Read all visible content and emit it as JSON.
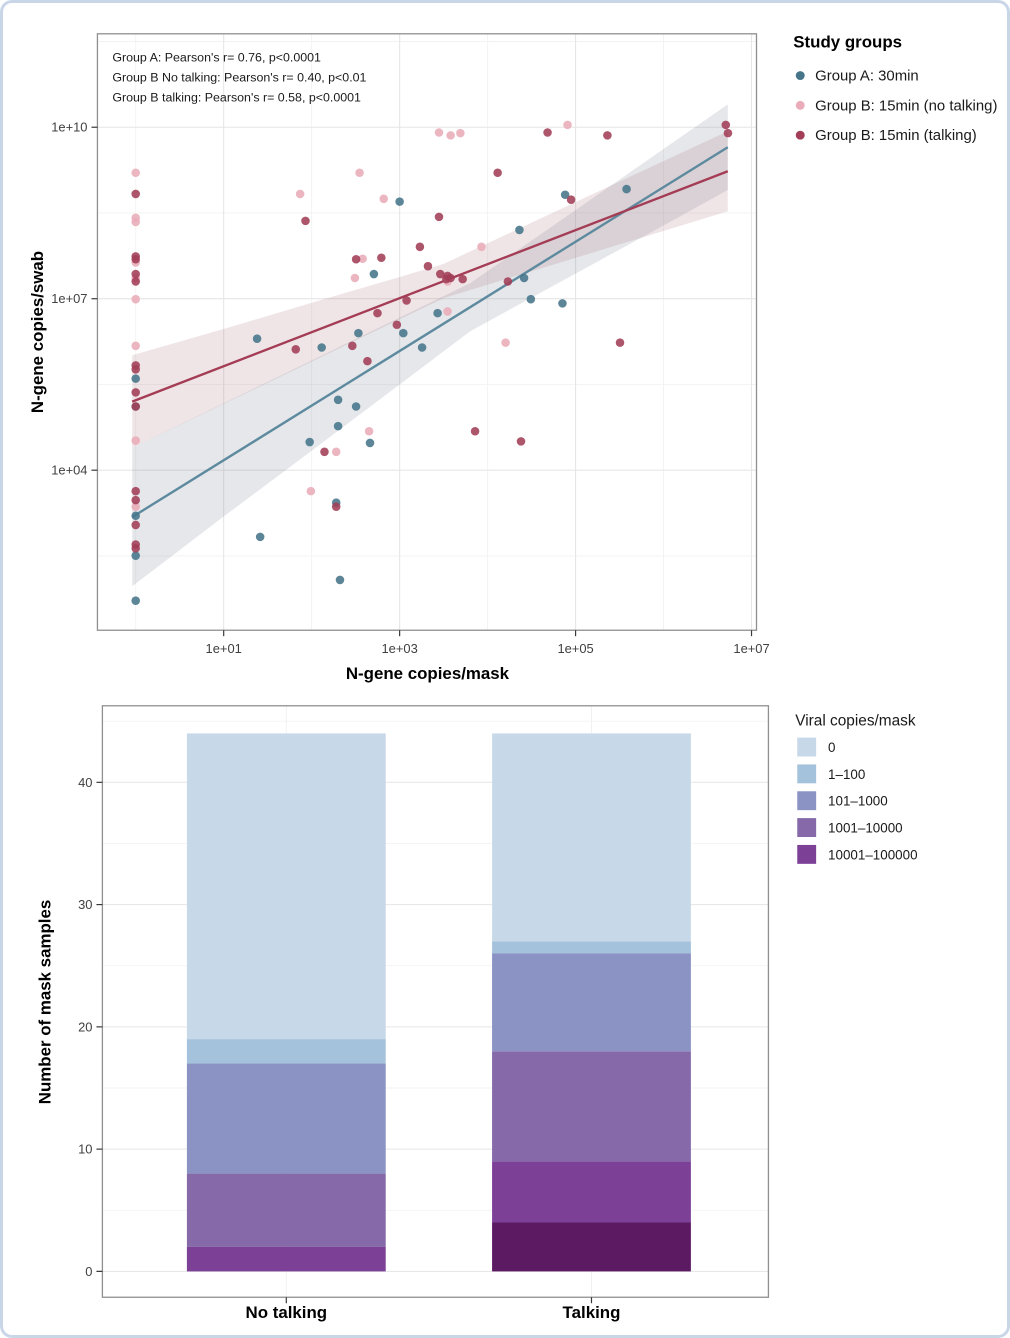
{
  "figure": {
    "scatter": {
      "annotations": [
        "Group A: Pearson's r= 0.76, p<0.0001",
        "Group B No talking: Pearson's r= 0.40, p<0.01",
        "Group B talking: Pearson's r= 0.58, p<0.0001"
      ],
      "xlabel": "N-gene copies/mask",
      "ylabel": "N-gene copies/swab",
      "x_tick_labels": [
        "1e+01",
        "1e+03",
        "1e+05",
        "1e+07"
      ],
      "x_tick_logs": [
        1,
        3,
        5,
        7
      ],
      "x_minor_logs": [
        0,
        2,
        4,
        6
      ],
      "y_tick_labels": [
        "1e+04",
        "1e+07",
        "1e+10"
      ],
      "y_tick_logs": [
        4,
        7,
        10
      ],
      "y_minor_logs": [
        2.5,
        5.5,
        8.5,
        11.5
      ],
      "legend_title": "Study groups",
      "chart_data": {
        "type": "scatter",
        "x_axis": "log10, N-gene copies/mask",
        "y_axis": "log10, N-gene copies/swab",
        "series": [
          {
            "name": "Group A:  30min",
            "dot_color": "#46758a",
            "line_color": "#5d8a9e",
            "band_fill": "rgba(110,120,140,0.18)",
            "points": [
              [
                1,
                400000
              ],
              [
                1,
                130000
              ],
              [
                1,
                1600
              ],
              [
                1,
                320
              ],
              [
                1,
                52
              ],
              [
                24,
                2000000
              ],
              [
                130,
                1400000
              ],
              [
                200,
                170000
              ],
              [
                320,
                130000
              ],
              [
                200,
                59000
              ],
              [
                95,
                31000
              ],
              [
                460,
                30000
              ],
              [
                190,
                2700
              ],
              [
                26,
                680
              ],
              [
                210,
                120
              ],
              [
                510,
                27000000
              ],
              [
                2700,
                5600000
              ],
              [
                1100,
                2500000
              ],
              [
                340,
                2500000
              ],
              [
                1800,
                1400000
              ],
              [
                1000,
                500000000
              ],
              [
                76000,
                660000000
              ],
              [
                380000,
                830000000
              ],
              [
                23000,
                160000000
              ],
              [
                26000,
                23000000
              ],
              [
                31000,
                9800000
              ],
              [
                71000,
                8300000
              ]
            ],
            "regression_log10": [
              [
                -0.04,
                3.18
              ],
              [
                6.73,
                9.65
              ]
            ],
            "band_log10": [
              [
                -0.04,
                4.39
              ],
              [
                1,
                5.17
              ],
              [
                2,
                5.92
              ],
              [
                3,
                6.67
              ],
              [
                3.8,
                7.27
              ],
              [
                5,
                8.55
              ],
              [
                6,
                9.62
              ],
              [
                6.73,
                10.4
              ],
              [
                6.73,
                8.9
              ],
              [
                6,
                8.28
              ],
              [
                5,
                7.44
              ],
              [
                3.8,
                6.43
              ],
              [
                3,
                5.5
              ],
              [
                2,
                4.34
              ],
              [
                1,
                3.19
              ],
              [
                -0.04,
                1.97
              ]
            ]
          },
          {
            "name": "Group B:  15min (no talking)",
            "dot_color": "#e9acb8",
            "points": [
              [
                1,
                1600000000
              ],
              [
                1,
                260000000
              ],
              [
                1,
                220000000
              ],
              [
                1,
                43000000
              ],
              [
                1,
                23000000
              ],
              [
                1,
                9800000
              ],
              [
                1,
                1500000
              ],
              [
                1,
                33000
              ],
              [
                1,
                2300
              ],
              [
                74,
                680000000
              ],
              [
                350,
                1600000000
              ],
              [
                660,
                560000000
              ],
              [
                450,
                48000
              ],
              [
                190,
                21000
              ],
              [
                98,
                4300
              ],
              [
                380,
                50000000
              ],
              [
                310,
                23000000
              ],
              [
                3500,
                20000000
              ],
              [
                8500,
                81000000
              ],
              [
                3500,
                6000000
              ],
              [
                16000,
                1700000
              ],
              [
                2800,
                8100000000
              ],
              [
                3800,
                7200000000
              ],
              [
                4900,
                7900000000
              ],
              [
                81000,
                11000000000
              ]
            ]
          },
          {
            "name": "Group B:  15min (talking)",
            "dot_color": "#a23e57",
            "line_color": "#a43c55",
            "band_fill": "rgba(165,110,122,0.18)",
            "points": [
              [
                1,
                680000000
              ],
              [
                1,
                55000000
              ],
              [
                1,
                49000000
              ],
              [
                1,
                27000000
              ],
              [
                1,
                20000000
              ],
              [
                1,
                680000
              ],
              [
                1,
                580000
              ],
              [
                1,
                230000
              ],
              [
                1,
                130000
              ],
              [
                1,
                4300
              ],
              [
                1,
                3000
              ],
              [
                1,
                1100
              ],
              [
                1,
                500
              ],
              [
                1,
                430
              ],
              [
                66,
                1300000
              ],
              [
                85,
                230000000
              ],
              [
                140,
                21000
              ],
              [
                190,
                2300
              ],
              [
                320,
                49000000
              ],
              [
                620,
                52000000
              ],
              [
                2100,
                37000000
              ],
              [
                2900,
                27000000
              ],
              [
                3500,
                25000000
              ],
              [
                3400,
                22000000
              ],
              [
                3800,
                23000000
              ],
              [
                5200,
                22000000
              ],
              [
                1700,
                81000000
              ],
              [
                1200,
                9300000
              ],
              [
                560,
                5600000
              ],
              [
                930,
                3500000
              ],
              [
                290,
                1500000
              ],
              [
                430,
                810000
              ],
              [
                48000,
                8100000000
              ],
              [
                230000,
                7200000000
              ],
              [
                13000,
                1600000000
              ],
              [
                89000,
                540000000
              ],
              [
                5100000,
                11000000000
              ],
              [
                5400000,
                7900000000
              ],
              [
                2800,
                270000000
              ],
              [
                17000,
                20000000
              ],
              [
                320000,
                1700000
              ],
              [
                7200,
                48000
              ],
              [
                24000,
                32000
              ]
            ],
            "regression_log10": [
              [
                -0.04,
                5.2
              ],
              [
                6.73,
                9.23
              ]
            ],
            "band_log10": [
              [
                -0.04,
                6.01
              ],
              [
                1,
                6.47
              ],
              [
                2,
                6.93
              ],
              [
                3,
                7.38
              ],
              [
                3.5,
                7.61
              ],
              [
                4.5,
                8.33
              ],
              [
                5.5,
                9.05
              ],
              [
                6.73,
                9.93
              ],
              [
                6.73,
                8.53
              ],
              [
                5.5,
                7.95
              ],
              [
                4.5,
                7.48
              ],
              [
                3.5,
                7.01
              ],
              [
                3,
                6.64
              ],
              [
                2,
                5.9
              ],
              [
                1,
                5.16
              ],
              [
                -0.04,
                4.39
              ]
            ]
          }
        ]
      }
    },
    "bars": {
      "ylabel": "Number of mask samples",
      "categories": [
        "No talking",
        "Talking"
      ],
      "y_ticks": [
        0,
        10,
        20,
        30,
        40
      ],
      "y_minor_ticks": [
        5,
        15,
        25,
        35,
        45
      ],
      "legend_title": "Viral copies/mask",
      "chart_data": {
        "type": "bar",
        "stacked": true,
        "categories": [
          "No talking",
          "Talking"
        ],
        "ylim": [
          0,
          46
        ],
        "segments_bottom_to_top": [
          {
            "label": "",
            "in_legend": false,
            "color": "#5c1a63",
            "values": [
              0,
              4
            ]
          },
          {
            "label": "10001–100000",
            "in_legend": true,
            "color": "#7c4097",
            "values": [
              2,
              5
            ]
          },
          {
            "label": "1001–10000",
            "in_legend": true,
            "color": "#8569a9",
            "values": [
              6,
              9
            ]
          },
          {
            "label": "101–1000",
            "in_legend": true,
            "color": "#8a93c4",
            "values": [
              9,
              8
            ]
          },
          {
            "label": "1–100",
            "in_legend": true,
            "color": "#a5c2dc",
            "values": [
              2,
              1
            ]
          },
          {
            "label": "0",
            "in_legend": true,
            "color": "#c7d9e9",
            "values": [
              25,
              17
            ]
          }
        ]
      }
    }
  }
}
